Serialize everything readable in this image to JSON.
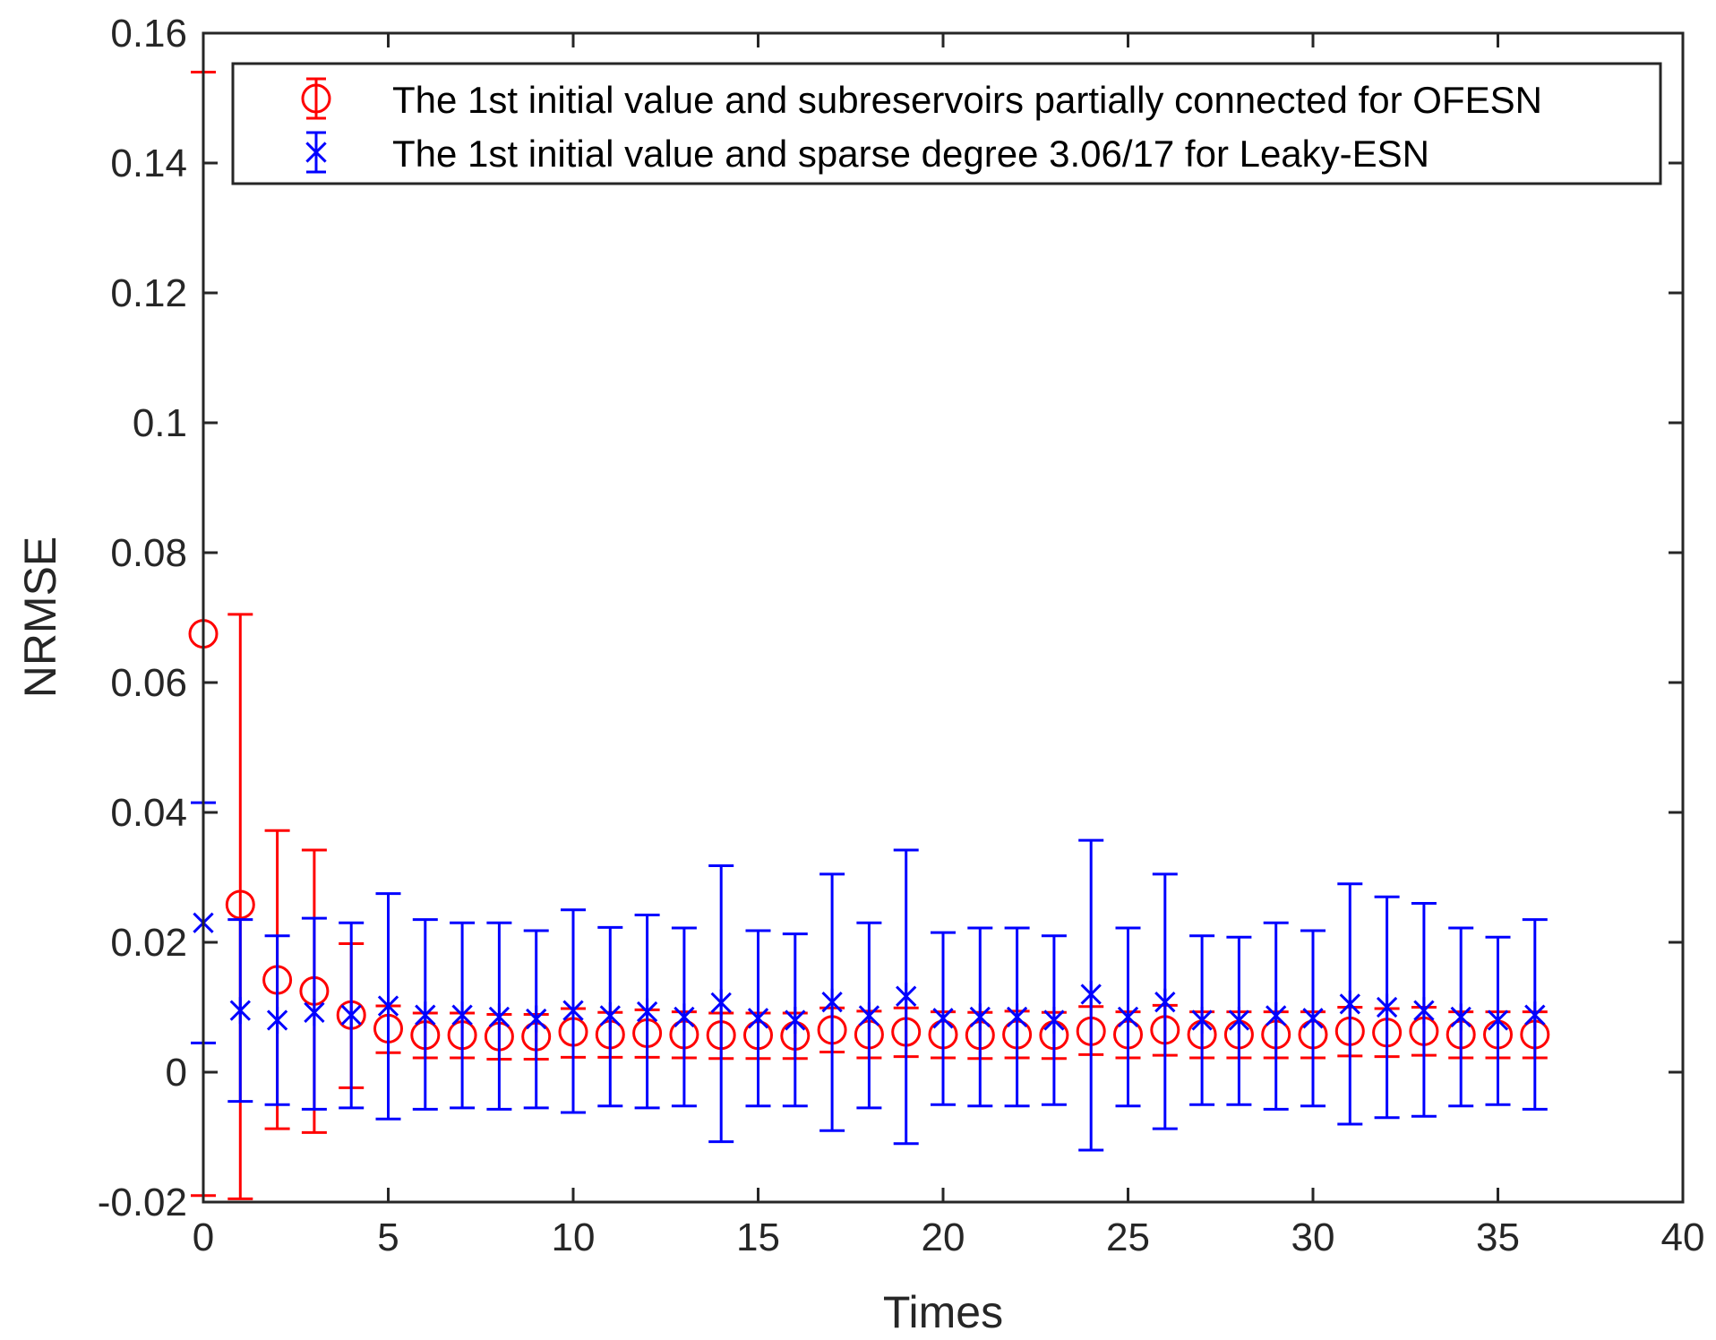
{
  "chart_data": {
    "type": "errorbar",
    "title": "",
    "xlabel": "Times",
    "ylabel": "NRMSE",
    "xlim": [
      0,
      40
    ],
    "ylim": [
      -0.02,
      0.16
    ],
    "xticks": [
      0,
      5,
      10,
      15,
      20,
      25,
      30,
      35,
      40
    ],
    "xtick_labels": [
      "0",
      "5",
      "10",
      "15",
      "20",
      "25",
      "30",
      "35",
      "40"
    ],
    "yticks": [
      -0.02,
      0,
      0.02,
      0.04,
      0.06,
      0.08,
      0.1,
      0.12,
      0.14,
      0.16
    ],
    "ytick_labels": [
      "-0.02",
      "0",
      "0.02",
      "0.04",
      "0.06",
      "0.08",
      "0.1",
      "0.12",
      "0.14",
      "0.16"
    ],
    "legend_position": "top-right",
    "x": [
      0,
      1,
      2,
      3,
      4,
      5,
      6,
      7,
      8,
      9,
      10,
      11,
      12,
      13,
      14,
      15,
      16,
      17,
      18,
      19,
      20,
      21,
      22,
      23,
      24,
      25,
      26,
      27,
      28,
      29,
      30,
      31,
      32,
      33,
      34,
      35,
      36
    ],
    "series": [
      {
        "name": "The 1st initial value and subreservoirs partially connected for OFESN",
        "color": "#ff0000",
        "marker": "circle",
        "values": [
          0.0675,
          0.0258,
          0.0142,
          0.0125,
          0.0088,
          0.0067,
          0.0057,
          0.0057,
          0.0055,
          0.0055,
          0.0062,
          0.0058,
          0.006,
          0.0058,
          0.0057,
          0.0057,
          0.0056,
          0.0065,
          0.0058,
          0.0062,
          0.0058,
          0.0057,
          0.0058,
          0.0057,
          0.0063,
          0.0058,
          0.0065,
          0.0058,
          0.0058,
          0.0058,
          0.0058,
          0.0063,
          0.0061,
          0.0063,
          0.0058,
          0.0058,
          0.0058
        ],
        "lower": [
          -0.019,
          -0.0195,
          -0.0087,
          -0.0093,
          -0.0024,
          0.003,
          0.0022,
          0.0022,
          0.002,
          0.002,
          0.0023,
          0.0023,
          0.0023,
          0.0022,
          0.0021,
          0.0021,
          0.0021,
          0.0031,
          0.0022,
          0.0024,
          0.0022,
          0.0021,
          0.0022,
          0.0021,
          0.0027,
          0.0022,
          0.0026,
          0.0022,
          0.0022,
          0.0022,
          0.0022,
          0.0025,
          0.0024,
          0.0026,
          0.0022,
          0.0022,
          0.0022
        ],
        "upper": [
          0.154,
          0.0705,
          0.0372,
          0.0342,
          0.0198,
          0.0102,
          0.0091,
          0.0091,
          0.0089,
          0.0089,
          0.0098,
          0.0092,
          0.0096,
          0.0093,
          0.0091,
          0.0091,
          0.0091,
          0.0099,
          0.0094,
          0.0099,
          0.0093,
          0.0092,
          0.0094,
          0.0092,
          0.0101,
          0.0093,
          0.0103,
          0.0093,
          0.0093,
          0.0093,
          0.0093,
          0.01,
          0.0098,
          0.01,
          0.0093,
          0.0093,
          0.0093
        ]
      },
      {
        "name": "The 1st initial value and sparse degree 3.06/17 for Leaky-ESN",
        "color": "#0000ff",
        "marker": "asterisk",
        "values": [
          0.023,
          0.0095,
          0.008,
          0.0092,
          0.0088,
          0.0102,
          0.0088,
          0.0088,
          0.0085,
          0.0082,
          0.0095,
          0.0087,
          0.0093,
          0.0085,
          0.0107,
          0.0083,
          0.008,
          0.0108,
          0.0087,
          0.0117,
          0.0083,
          0.0085,
          0.0085,
          0.008,
          0.012,
          0.0085,
          0.0108,
          0.008,
          0.008,
          0.0087,
          0.0083,
          0.0105,
          0.01,
          0.0095,
          0.0085,
          0.008,
          0.0088
        ],
        "lower": [
          0.0045,
          -0.0045,
          -0.005,
          -0.0057,
          -0.0055,
          -0.0072,
          -0.0057,
          -0.0055,
          -0.0057,
          -0.0055,
          -0.0062,
          -0.0052,
          -0.0055,
          -0.0052,
          -0.0107,
          -0.0052,
          -0.0052,
          -0.009,
          -0.0055,
          -0.011,
          -0.005,
          -0.0052,
          -0.0052,
          -0.005,
          -0.012,
          -0.0052,
          -0.0087,
          -0.005,
          -0.005,
          -0.0057,
          -0.0052,
          -0.008,
          -0.007,
          -0.0068,
          -0.0052,
          -0.005,
          -0.0057
        ],
        "upper": [
          0.0415,
          0.0235,
          0.021,
          0.0237,
          0.023,
          0.0275,
          0.0235,
          0.023,
          0.023,
          0.0218,
          0.025,
          0.0223,
          0.0242,
          0.0222,
          0.0318,
          0.0218,
          0.0213,
          0.0305,
          0.023,
          0.0342,
          0.0215,
          0.0222,
          0.0222,
          0.021,
          0.0357,
          0.0222,
          0.0305,
          0.021,
          0.0208,
          0.023,
          0.0218,
          0.029,
          0.027,
          0.026,
          0.0222,
          0.0208,
          0.0235
        ]
      }
    ]
  }
}
